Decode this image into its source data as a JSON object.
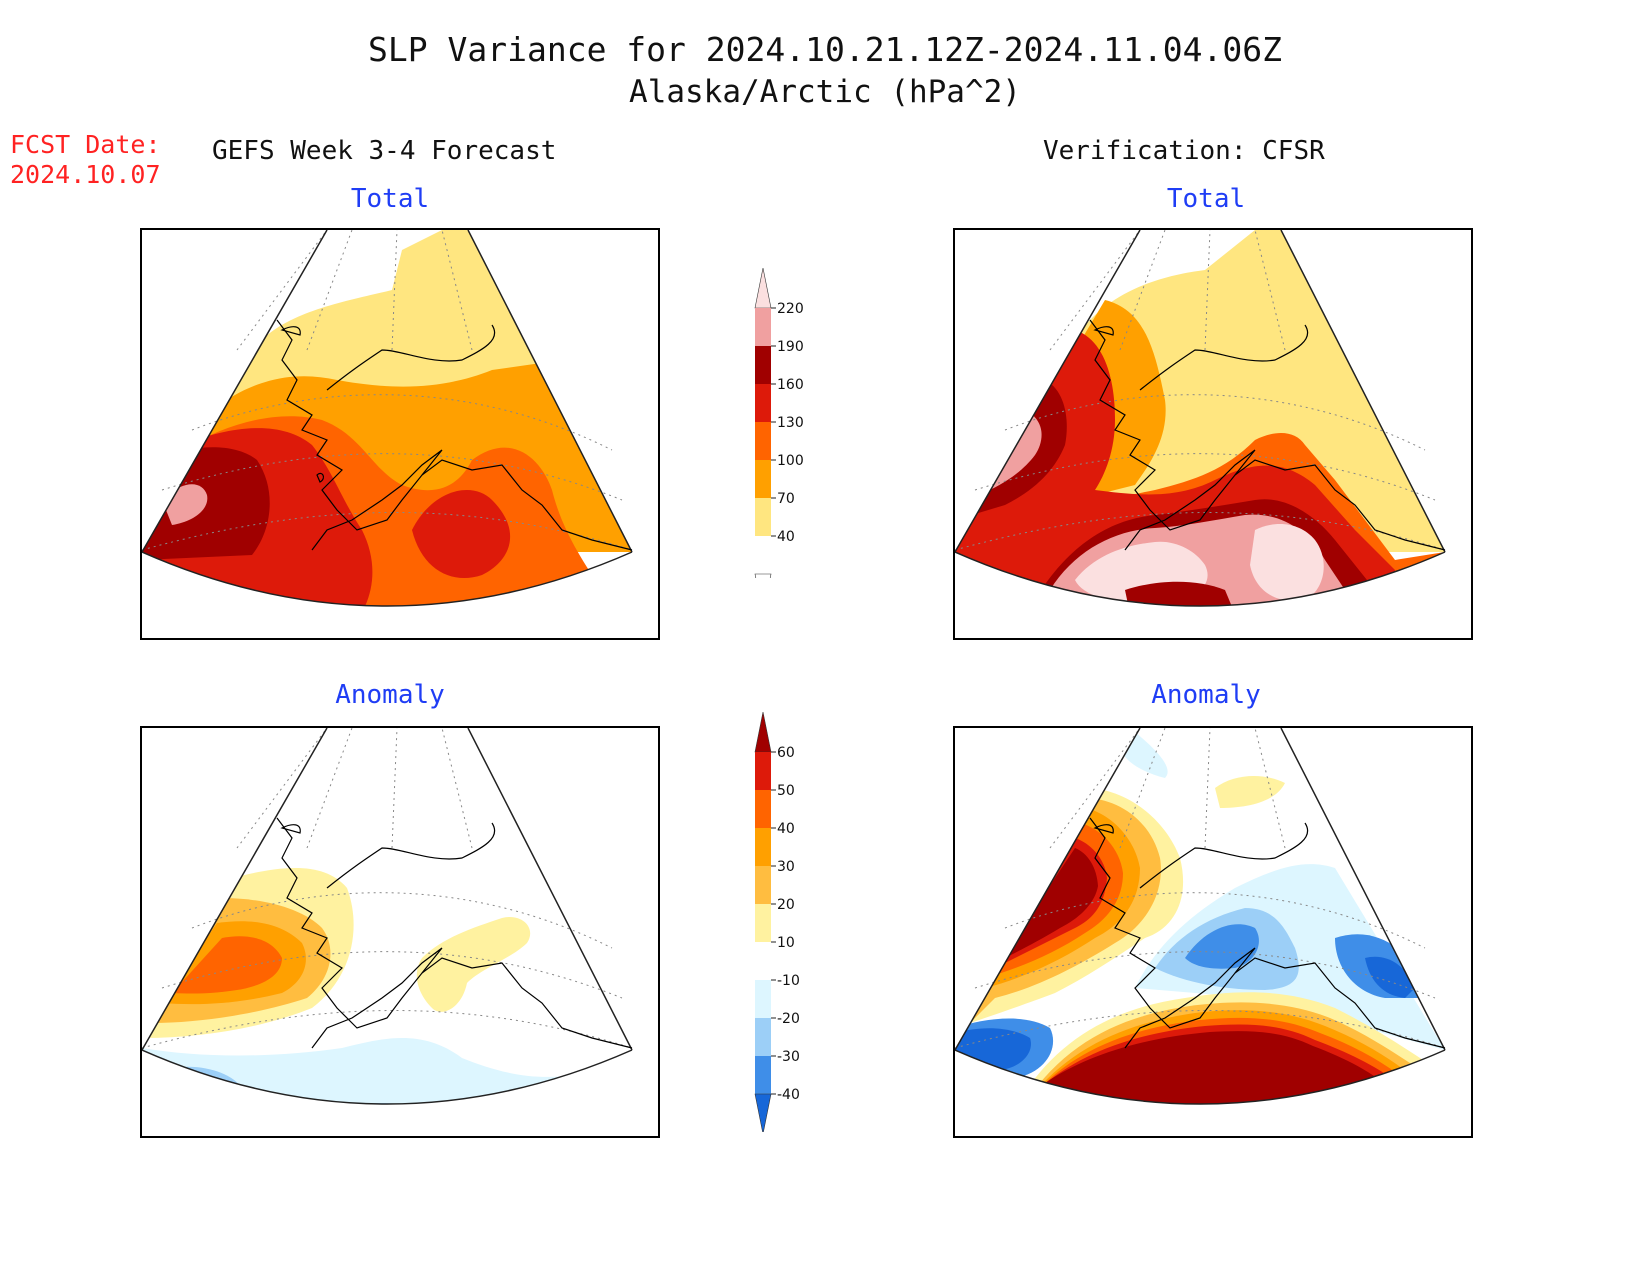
{
  "header": {
    "title": "SLP Variance for 2024.10.21.12Z-2024.11.04.06Z",
    "subtitle": "Alaska/Arctic (hPa^2)"
  },
  "fcst_date": {
    "label": "FCST Date:",
    "value": "2024.10.07"
  },
  "columns": {
    "left": "GEFS Week 3-4 Forecast",
    "right": "Verification: CFSR"
  },
  "panels": {
    "forecast_total": "Total",
    "verification_total": "Total",
    "forecast_anomaly": "Anomaly",
    "verification_anomaly": "Anomaly"
  },
  "colorbars": {
    "total": {
      "labels": [
        "220",
        "190",
        "160",
        "130",
        "100",
        "70",
        "40"
      ],
      "colors": [
        "#fbe0e0",
        "#f0a0a0",
        "#a00000",
        "#dd1a0a",
        "#ff6400",
        "#ffa000",
        "#ffe680",
        "#ffffff"
      ]
    },
    "anomaly": {
      "labels": [
        "60",
        "50",
        "40",
        "30",
        "20",
        "10",
        "-10",
        "-20",
        "-30",
        "-40"
      ],
      "colors": [
        "#a00000",
        "#dd1a0a",
        "#ff6400",
        "#ffa000",
        "#ffbd40",
        "#fff2a0",
        "#ffffff",
        "#ddf6ff",
        "#9ccff7",
        "#3f8ee8",
        "#1767d8"
      ]
    }
  },
  "colors": {
    "lightyellow": "#ffe680",
    "orange": "#ffa000",
    "darkorange": "#ff6400",
    "red": "#dd1a0a",
    "darkred": "#a00000",
    "pink": "#f0a0a0",
    "lightpink": "#fbe0e0",
    "palecyan": "#ddf6ff",
    "lightblue": "#9ccff7",
    "blue": "#3f8ee8",
    "deepblue": "#1767d8",
    "paleyellow": "#fff2a0",
    "lightorange": "#ffbd40"
  }
}
